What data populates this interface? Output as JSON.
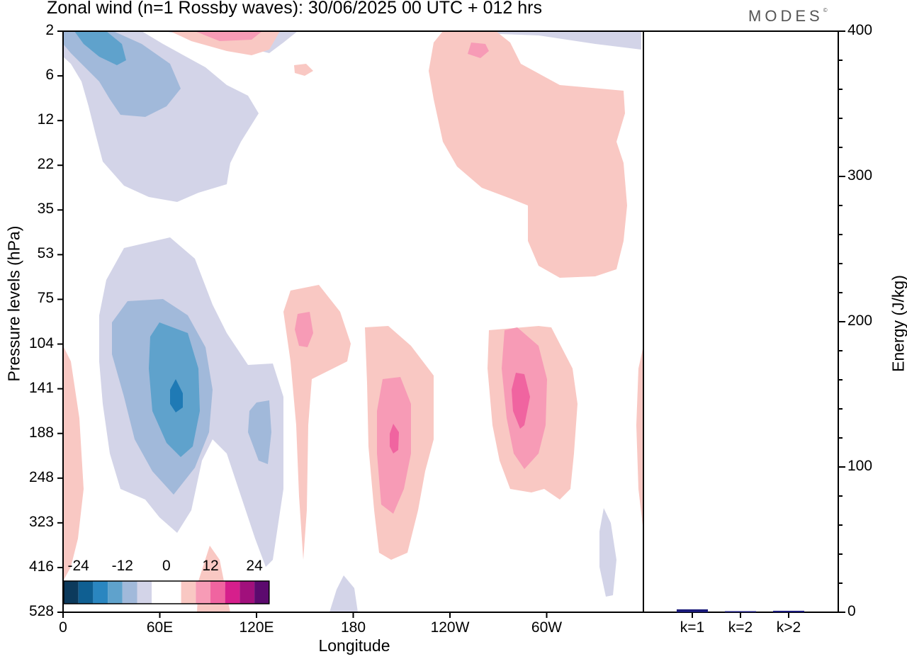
{
  "header": {
    "title": "Zonal wind (n=1 Rossby waves):  30/06/2025  00 UTC  + 012 hrs",
    "brand": "MODES"
  },
  "colors": {
    "neg1": "#d3d4e8",
    "neg2": "#a1b9da",
    "neg3": "#5fa2cc",
    "neg4": "#1f7ab5",
    "pos1": "#f9c8c3",
    "pos2": "#f79bb6",
    "pos3": "#f064a0",
    "bar": "#1a1a7a",
    "axis": "#000000"
  },
  "chart_data": [
    {
      "type": "contour",
      "title": "Zonal wind (n=1 Rossby waves):  30/06/2025  00 UTC  + 012 hrs",
      "xlabel": "Longitude",
      "ylabel": "Pressure levels (hPa)",
      "x_ticks": [
        "0",
        "60E",
        "120E",
        "180",
        "120W",
        "60W"
      ],
      "y_ticks": [
        "2",
        "6",
        "12",
        "22",
        "35",
        "53",
        "75",
        "104",
        "141",
        "188",
        "248",
        "323",
        "416",
        "528"
      ],
      "colorbar": {
        "ticks": [
          "-24",
          "-12",
          "0",
          "12",
          "24"
        ],
        "levels": [
          "-28",
          "-24",
          "-20",
          "-16",
          "-12",
          "-8",
          "-4",
          "4",
          "8",
          "12",
          "16",
          "20",
          "24",
          "28"
        ],
        "colors": [
          "#0c3a5c",
          "#0f5f92",
          "#2a86c0",
          "#5fa2cc",
          "#a1b9da",
          "#d3d4e8",
          "#ffffff",
          "#ffffff",
          "#f9c8c3",
          "#f79bb6",
          "#f064a0",
          "#d61f8c",
          "#a1107c",
          "#5c0a6e"
        ]
      }
    },
    {
      "type": "bar",
      "ylabel": "Energy (J/kg)",
      "ylim": [
        0,
        400
      ],
      "y_ticks": [
        "0",
        "100",
        "200",
        "300",
        "400"
      ],
      "categories": [
        "k=1",
        "k=2",
        "k>2"
      ],
      "values": [
        2,
        0.5,
        1
      ]
    }
  ]
}
